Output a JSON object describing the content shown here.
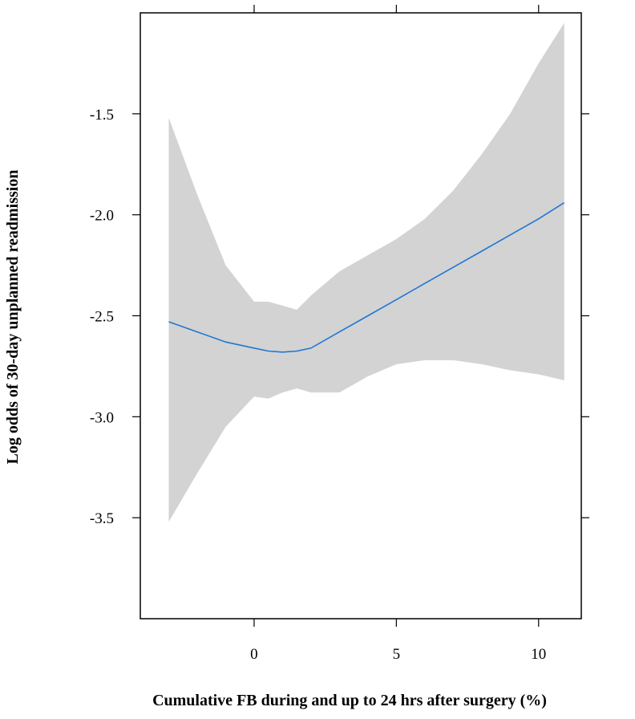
{
  "chart_data": {
    "type": "line",
    "xlabel": "Cumulative FB during and up to 24 hrs after surgery (%)",
    "ylabel": "Log odds of 30-day unplanned readmission",
    "xlim": [
      -4.0,
      11.5
    ],
    "ylim": [
      -4.0,
      -1.0
    ],
    "xticks": [
      0,
      5,
      10
    ],
    "xtick_labels": [
      "0",
      "5",
      "10"
    ],
    "yticks": [
      -1.5,
      -2.0,
      -2.5,
      -3.0,
      -3.5
    ],
    "ytick_labels": [
      "-1.5",
      "-2.0",
      "-2.5",
      "-3.0",
      "-3.5"
    ],
    "grid": false,
    "line_color": "#1f77d4",
    "band_color": "#d3d3d3",
    "series": [
      {
        "x": [
          -3.0,
          -2.0,
          -1.0,
          0.0,
          0.5,
          1.0,
          1.5,
          2.0,
          3.0,
          4.0,
          5.0,
          6.0,
          7.0,
          8.0,
          9.0,
          10.0,
          10.9
        ],
        "y": [
          -2.53,
          -2.58,
          -2.63,
          -2.66,
          -2.675,
          -2.68,
          -2.675,
          -2.66,
          -2.58,
          -2.5,
          -2.42,
          -2.34,
          -2.26,
          -2.18,
          -2.1,
          -2.02,
          -1.94
        ],
        "lower": [
          -3.52,
          -3.28,
          -3.05,
          -2.9,
          -2.91,
          -2.88,
          -2.86,
          -2.88,
          -2.88,
          -2.8,
          -2.74,
          -2.72,
          -2.72,
          -2.74,
          -2.77,
          -2.79,
          -2.82
        ],
        "upper": [
          -1.52,
          -1.9,
          -2.25,
          -2.43,
          -2.43,
          -2.45,
          -2.47,
          -2.4,
          -2.28,
          -2.2,
          -2.12,
          -2.02,
          -1.88,
          -1.7,
          -1.5,
          -1.25,
          -1.05
        ]
      }
    ]
  }
}
